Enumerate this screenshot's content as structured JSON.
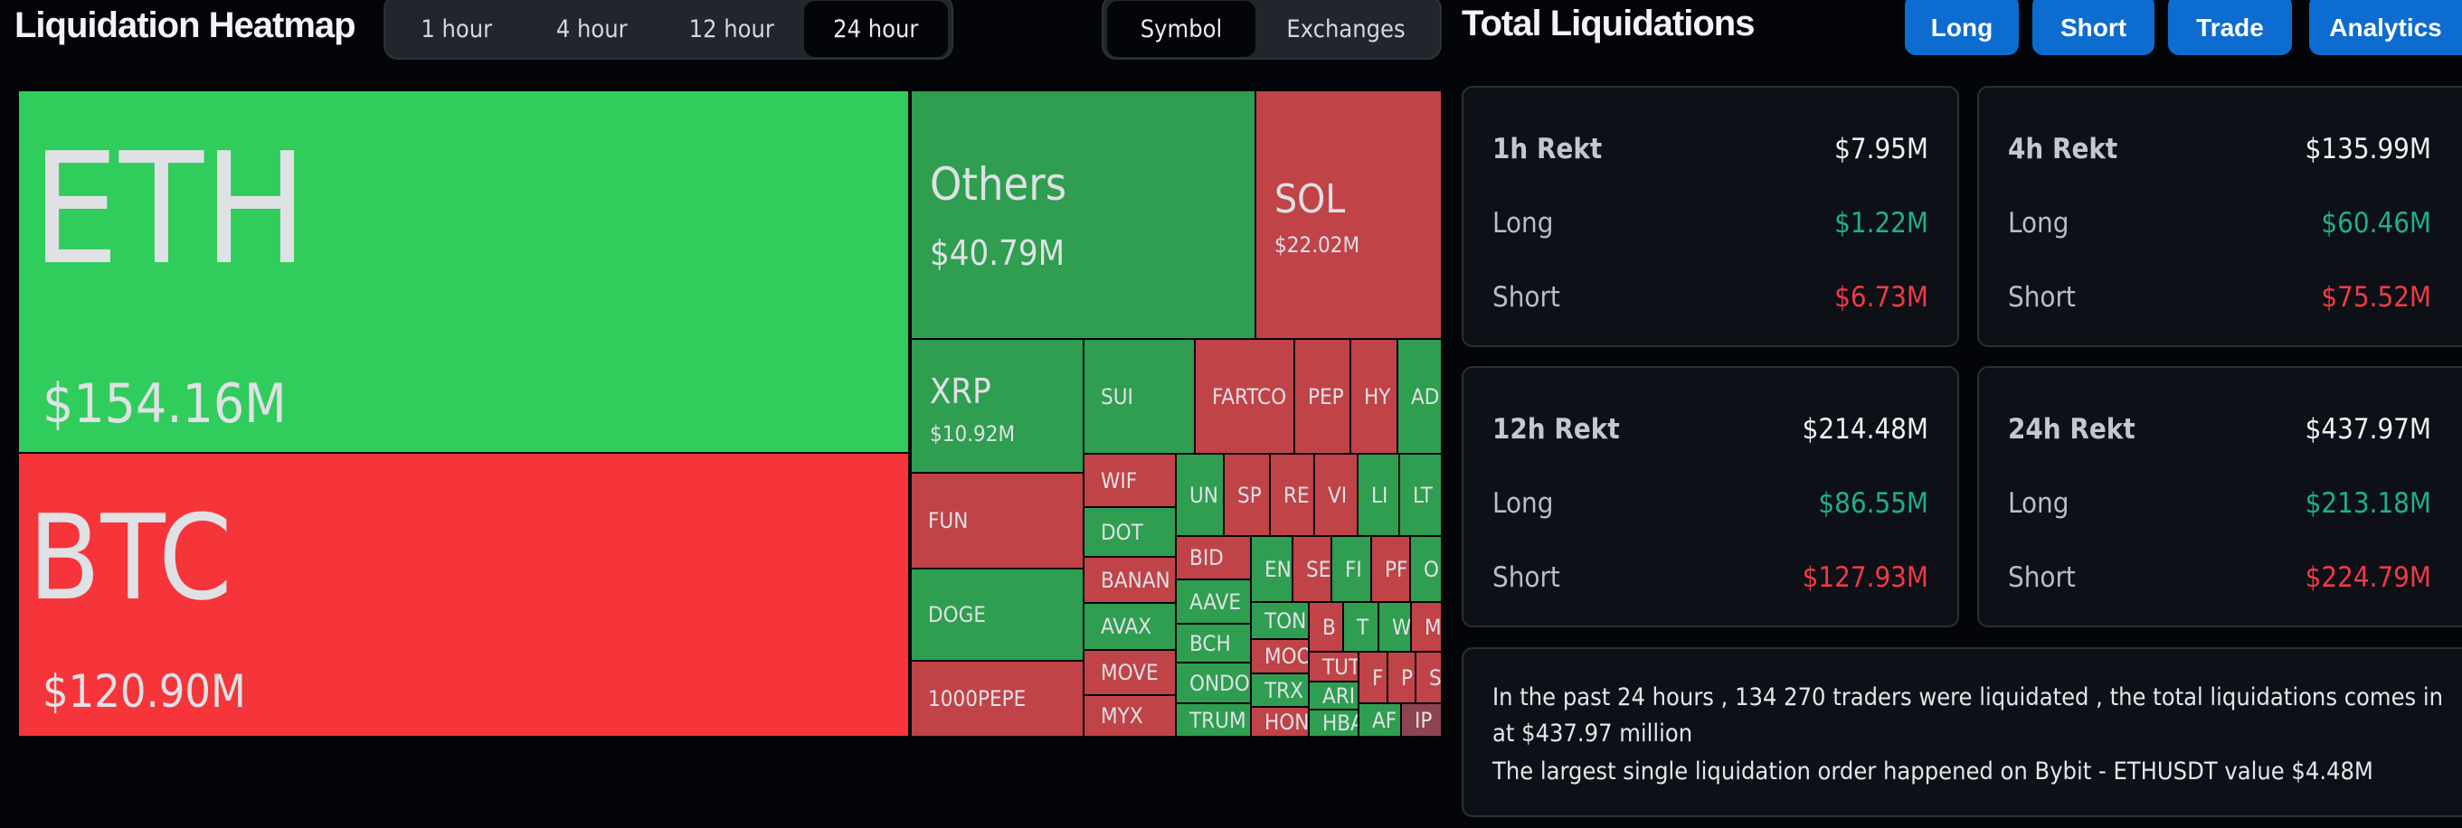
{
  "heatmap": {
    "title": "Liquidation Heatmap",
    "time_tabs": [
      {
        "label": "1 hour",
        "active": false
      },
      {
        "label": "4 hour",
        "active": false
      },
      {
        "label": "12 hour",
        "active": false
      },
      {
        "label": "24 hour",
        "active": true
      }
    ],
    "view_tabs": [
      {
        "label": "Symbol",
        "active": true
      },
      {
        "label": "Exchanges",
        "active": false
      }
    ],
    "colors": {
      "long_big": "#30cc5c",
      "short_big": "#f5353a",
      "long": "#2f9e50",
      "short": "#c04348",
      "neutral": "#8c4450"
    },
    "tiles": [
      {
        "symbol": "ETH",
        "value": "$154.16M",
        "side": "long_big"
      },
      {
        "symbol": "BTC",
        "value": "$120.90M",
        "side": "short_big"
      },
      {
        "symbol": "Others",
        "value": "$40.79M",
        "side": "long"
      },
      {
        "symbol": "SOL",
        "value": "$22.02M",
        "side": "short"
      },
      {
        "symbol": "XRP",
        "value": "$10.92M",
        "side": "long"
      },
      {
        "symbol": "SUI",
        "side": "long"
      },
      {
        "symbol": "FARTCO",
        "side": "short"
      },
      {
        "symbol": "PEP",
        "side": "short"
      },
      {
        "symbol": "HY",
        "side": "short"
      },
      {
        "symbol": "AD",
        "side": "long"
      },
      {
        "symbol": "FUN",
        "side": "short"
      },
      {
        "symbol": "DOGE",
        "side": "long"
      },
      {
        "symbol": "1000PEPE",
        "side": "short"
      },
      {
        "symbol": "WIF",
        "side": "short"
      },
      {
        "symbol": "DOT",
        "side": "long"
      },
      {
        "symbol": "BANAN",
        "side": "short"
      },
      {
        "symbol": "AVAX",
        "side": "long"
      },
      {
        "symbol": "MOVE",
        "side": "short"
      },
      {
        "symbol": "MYX",
        "side": "short"
      },
      {
        "symbol": "UN",
        "side": "long"
      },
      {
        "symbol": "SP",
        "side": "short"
      },
      {
        "symbol": "RE",
        "side": "short"
      },
      {
        "symbol": "VI",
        "side": "short"
      },
      {
        "symbol": "LI",
        "side": "long"
      },
      {
        "symbol": "LT",
        "side": "long"
      },
      {
        "symbol": "BID",
        "side": "short"
      },
      {
        "symbol": "AAVE",
        "side": "long"
      },
      {
        "symbol": "BCH",
        "side": "long"
      },
      {
        "symbol": "ONDO",
        "side": "long"
      },
      {
        "symbol": "TRUM",
        "side": "long"
      },
      {
        "symbol": "EN",
        "side": "long"
      },
      {
        "symbol": "SE",
        "side": "short"
      },
      {
        "symbol": "FI",
        "side": "long"
      },
      {
        "symbol": "PF",
        "side": "short"
      },
      {
        "symbol": "O",
        "side": "long"
      },
      {
        "symbol": "TON",
        "side": "long"
      },
      {
        "symbol": "MOO",
        "side": "short"
      },
      {
        "symbol": "TRX",
        "side": "long"
      },
      {
        "symbol": "HON",
        "side": "short"
      },
      {
        "symbol": "B",
        "side": "short"
      },
      {
        "symbol": "T",
        "side": "long"
      },
      {
        "symbol": "W",
        "side": "long"
      },
      {
        "symbol": "M",
        "side": "short"
      },
      {
        "symbol": "TUT",
        "side": "short"
      },
      {
        "symbol": "ARI",
        "side": "long"
      },
      {
        "symbol": "HBA",
        "side": "long"
      },
      {
        "symbol": "F",
        "side": "short"
      },
      {
        "symbol": "P",
        "side": "short"
      },
      {
        "symbol": "S",
        "side": "short"
      },
      {
        "symbol": "AF",
        "side": "long"
      },
      {
        "symbol": "IP",
        "side": "neutral"
      }
    ]
  },
  "totals": {
    "title": "Total Liquidations",
    "buttons": [
      "Long",
      "Short",
      "Trade",
      "Analytics"
    ],
    "cards": [
      {
        "period": "1h Rekt",
        "total": "$7.95M",
        "long_label": "Long",
        "long": "$1.22M",
        "short_label": "Short",
        "short": "$6.73M"
      },
      {
        "period": "4h Rekt",
        "total": "$135.99M",
        "long_label": "Long",
        "long": "$60.46M",
        "short_label": "Short",
        "short": "$75.52M"
      },
      {
        "period": "12h Rekt",
        "total": "$214.48M",
        "long_label": "Long",
        "long": "$86.55M",
        "short_label": "Short",
        "short": "$127.93M"
      },
      {
        "period": "24h Rekt",
        "total": "$437.97M",
        "long_label": "Long",
        "long": "$213.18M",
        "short_label": "Short",
        "short": "$224.79M"
      }
    ],
    "colors": {
      "long": "#1fae8c",
      "short": "#ef3a45",
      "button": "#0d6ccf"
    },
    "summary": {
      "line1": "In the past 24 hours , 134 270 traders were liquidated , the total liquidations comes in",
      "line2": "at $437.97 million",
      "line3": "The largest single liquidation order happened on Bybit - ETHUSDT value $4.48M"
    }
  }
}
